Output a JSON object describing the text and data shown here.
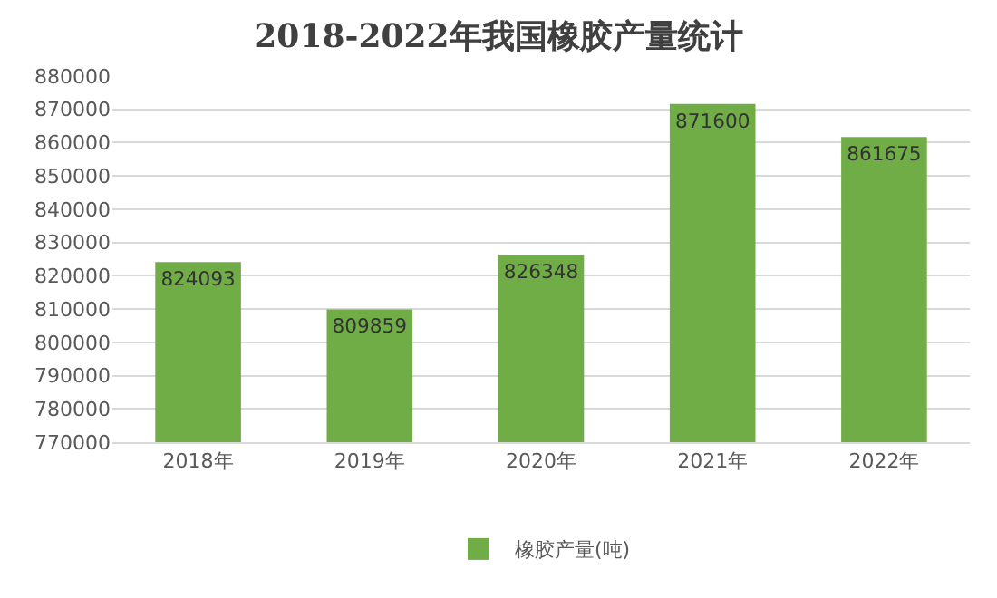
{
  "chart_data": {
    "type": "bar",
    "title": "2018-2022年我国橡胶产量统计",
    "categories": [
      "2018年",
      "2019年",
      "2020年",
      "2021年",
      "2022年"
    ],
    "series": [
      {
        "name": "橡胶产量(吨)",
        "color": "#70ad47",
        "values": [
          824093,
          809859,
          826348,
          871600,
          861675
        ]
      }
    ],
    "ylim": [
      770000,
      880000
    ],
    "yticks": [
      770000,
      780000,
      790000,
      800000,
      810000,
      820000,
      830000,
      840000,
      850000,
      860000,
      870000,
      880000
    ],
    "grid": "y",
    "legend": "bottom",
    "data_labels": true
  }
}
